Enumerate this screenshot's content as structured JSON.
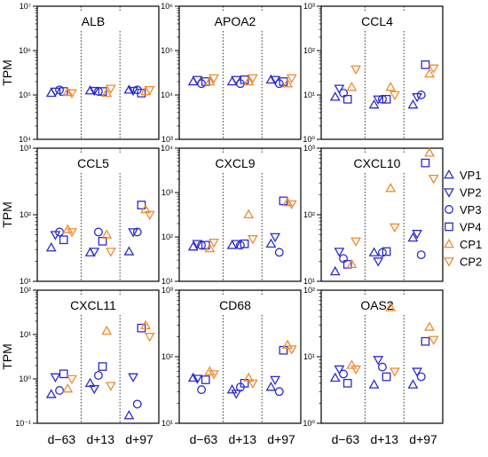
{
  "figure": {
    "y_axis_label": "TPM",
    "x_tick_labels": [
      "d−63",
      "d+13",
      "d+97"
    ],
    "legend": [
      {
        "name": "VP1",
        "marker": "triangle-up",
        "color": "#2b2bcc"
      },
      {
        "name": "VP2",
        "marker": "triangle-down",
        "color": "#2b2bcc"
      },
      {
        "name": "VP3",
        "marker": "circle",
        "color": "#2b2bcc"
      },
      {
        "name": "VP4",
        "marker": "square",
        "color": "#2b2bcc"
      },
      {
        "name": "CP1",
        "marker": "triangle-up",
        "color": "#f08a2e"
      },
      {
        "name": "CP2",
        "marker": "triangle-down",
        "color": "#f08a2e"
      }
    ],
    "vp_color": "#2b2bcc",
    "cp_color": "#f08a2e"
  },
  "chart_data": [
    {
      "type": "scatter",
      "title": "ALB",
      "ylabel": "TPM",
      "yscale": "log",
      "ylim_exp": [
        4,
        7
      ],
      "ytick_labels": [
        "10⁴",
        "10⁵",
        "10⁶",
        "10⁷"
      ],
      "categories": [
        "d−63",
        "d+13",
        "d+97"
      ],
      "series": [
        {
          "name": "VP1",
          "values": [
            110000,
            125000,
            130000
          ]
        },
        {
          "name": "VP2",
          "values": [
            120000,
            125000,
            125000
          ]
        },
        {
          "name": "VP3",
          "values": [
            130000,
            120000,
            130000
          ]
        },
        {
          "name": "VP4",
          "values": [
            120000,
            120000,
            110000
          ]
        },
        {
          "name": "CP1",
          "values": [
            115000,
            110000,
            120000
          ]
        },
        {
          "name": "CP2",
          "values": [
            110000,
            140000,
            130000
          ]
        }
      ]
    },
    {
      "type": "scatter",
      "title": "APOA2",
      "ylabel": "",
      "yscale": "log",
      "ylim_exp": [
        3,
        6
      ],
      "ytick_labels": [
        "10³",
        "10⁴",
        "10⁵",
        "10⁶"
      ],
      "categories": [
        "d−63",
        "d+13",
        "d+97"
      ],
      "series": [
        {
          "name": "VP1",
          "values": [
            20000,
            20000,
            22000
          ]
        },
        {
          "name": "VP2",
          "values": [
            22000,
            22000,
            22000
          ]
        },
        {
          "name": "VP3",
          "values": [
            18000,
            18000,
            18000
          ]
        },
        {
          "name": "VP4",
          "values": [
            20000,
            22000,
            20000
          ]
        },
        {
          "name": "CP1",
          "values": [
            20000,
            20000,
            18000
          ]
        },
        {
          "name": "CP2",
          "values": [
            24000,
            24000,
            24000
          ]
        }
      ]
    },
    {
      "type": "scatter",
      "title": "CCL4",
      "ylabel": "",
      "yscale": "log",
      "ylim_exp": [
        0,
        3
      ],
      "ytick_labels": [
        "10⁰",
        "10¹",
        "10²",
        "10³"
      ],
      "categories": [
        "d−63",
        "d+13",
        "d+97"
      ],
      "series": [
        {
          "name": "VP1",
          "values": [
            9,
            6,
            6
          ]
        },
        {
          "name": "VP2",
          "values": [
            14,
            8,
            9
          ]
        },
        {
          "name": "VP3",
          "values": [
            11,
            8,
            10
          ]
        },
        {
          "name": "VP4",
          "values": [
            8,
            8,
            48
          ]
        },
        {
          "name": "CP1",
          "values": [
            15,
            15,
            30
          ]
        },
        {
          "name": "CP2",
          "values": [
            38,
            10,
            40
          ]
        }
      ]
    },
    {
      "type": "scatter",
      "title": "CCL5",
      "ylabel": "TPM",
      "yscale": "log",
      "ylim_exp": [
        1,
        3
      ],
      "ytick_labels": [
        "10¹",
        "10²",
        "10³"
      ],
      "categories": [
        "d−63",
        "d+13",
        "d+97"
      ],
      "series": [
        {
          "name": "VP1",
          "values": [
            32,
            27,
            28
          ]
        },
        {
          "name": "VP2",
          "values": [
            50,
            28,
            55
          ]
        },
        {
          "name": "VP3",
          "values": [
            55,
            55,
            55
          ]
        },
        {
          "name": "VP4",
          "values": [
            42,
            40,
            140
          ]
        },
        {
          "name": "CP1",
          "values": [
            60,
            50,
            120
          ]
        },
        {
          "name": "CP2",
          "values": [
            55,
            28,
            100
          ]
        }
      ]
    },
    {
      "type": "scatter",
      "title": "CXCL9",
      "ylabel": "",
      "yscale": "log",
      "ylim_exp": [
        1,
        4
      ],
      "ytick_labels": [
        "10¹",
        "10²",
        "10³",
        "10⁴"
      ],
      "categories": [
        "d−63",
        "d+13",
        "d+97"
      ],
      "series": [
        {
          "name": "VP1",
          "values": [
            60,
            65,
            70
          ]
        },
        {
          "name": "VP2",
          "values": [
            70,
            70,
            100
          ]
        },
        {
          "name": "VP3",
          "values": [
            65,
            65,
            45
          ]
        },
        {
          "name": "VP4",
          "values": [
            65,
            70,
            650
          ]
        },
        {
          "name": "CP1",
          "values": [
            55,
            320,
            600
          ]
        },
        {
          "name": "CP2",
          "values": [
            75,
            90,
            550
          ]
        }
      ]
    },
    {
      "type": "scatter",
      "title": "CXCL10",
      "ylabel": "",
      "yscale": "log",
      "ylim_exp": [
        1,
        3
      ],
      "ytick_labels": [
        "10¹",
        "10²",
        "10³"
      ],
      "categories": [
        "d−63",
        "d+13",
        "d+97"
      ],
      "series": [
        {
          "name": "VP1",
          "values": [
            14,
            27,
            45
          ]
        },
        {
          "name": "VP2",
          "values": [
            28,
            20,
            52
          ]
        },
        {
          "name": "VP3",
          "values": [
            22,
            27,
            25
          ]
        },
        {
          "name": "VP4",
          "values": [
            18,
            28,
            600
          ]
        },
        {
          "name": "CP1",
          "values": [
            18,
            250,
            850
          ]
        },
        {
          "name": "CP2",
          "values": [
            40,
            65,
            350
          ]
        }
      ]
    },
    {
      "type": "scatter",
      "title": "CXCL11",
      "ylabel": "TPM",
      "yscale": "log",
      "ylim_exp": [
        -1,
        2
      ],
      "ytick_labels": [
        "10⁻¹",
        "10⁰",
        "10¹",
        "10²"
      ],
      "categories": [
        "d−63",
        "d+13",
        "d+97"
      ],
      "series": [
        {
          "name": "VP1",
          "values": [
            0.45,
            0.8,
            0.15
          ]
        },
        {
          "name": "VP2",
          "values": [
            1.1,
            0.6,
            1.1
          ]
        },
        {
          "name": "VP3",
          "values": [
            0.55,
            1.2,
            0.27
          ]
        },
        {
          "name": "VP4",
          "values": [
            1.3,
            1.9,
            14
          ]
        },
        {
          "name": "CP1",
          "values": [
            0.6,
            12,
            16
          ]
        },
        {
          "name": "CP2",
          "values": [
            1.0,
            0.7,
            9
          ]
        }
      ]
    },
    {
      "type": "scatter",
      "title": "CD68",
      "ylabel": "",
      "yscale": "log",
      "ylim_exp": [
        1,
        3
      ],
      "ytick_labels": [
        "10¹",
        "10²",
        "10³"
      ],
      "categories": [
        "d−63",
        "d+13",
        "d+97"
      ],
      "series": [
        {
          "name": "VP1",
          "values": [
            48,
            32,
            35
          ]
        },
        {
          "name": "VP2",
          "values": [
            47,
            28,
            45
          ]
        },
        {
          "name": "VP3",
          "values": [
            32,
            35,
            30
          ]
        },
        {
          "name": "VP4",
          "values": [
            45,
            40,
            125
          ]
        },
        {
          "name": "CP1",
          "values": [
            60,
            48,
            150
          ]
        },
        {
          "name": "CP2",
          "values": [
            55,
            40,
            130
          ]
        }
      ]
    },
    {
      "type": "scatter",
      "title": "OAS2",
      "ylabel": "",
      "yscale": "log",
      "ylim_exp": [
        0,
        2
      ],
      "ytick_labels": [
        "10⁰",
        "10¹",
        "10²"
      ],
      "categories": [
        "d−63",
        "d+13",
        "d+97"
      ],
      "series": [
        {
          "name": "VP1",
          "values": [
            4.8,
            3.8,
            3.8
          ]
        },
        {
          "name": "VP2",
          "values": [
            6.5,
            9,
            6
          ]
        },
        {
          "name": "VP3",
          "values": [
            5.5,
            7,
            5
          ]
        },
        {
          "name": "VP4",
          "values": [
            4,
            5,
            17
          ]
        },
        {
          "name": "CP1",
          "values": [
            7.5,
            55,
            28
          ]
        },
        {
          "name": "CP2",
          "values": [
            6.5,
            6,
            18
          ]
        }
      ]
    }
  ]
}
